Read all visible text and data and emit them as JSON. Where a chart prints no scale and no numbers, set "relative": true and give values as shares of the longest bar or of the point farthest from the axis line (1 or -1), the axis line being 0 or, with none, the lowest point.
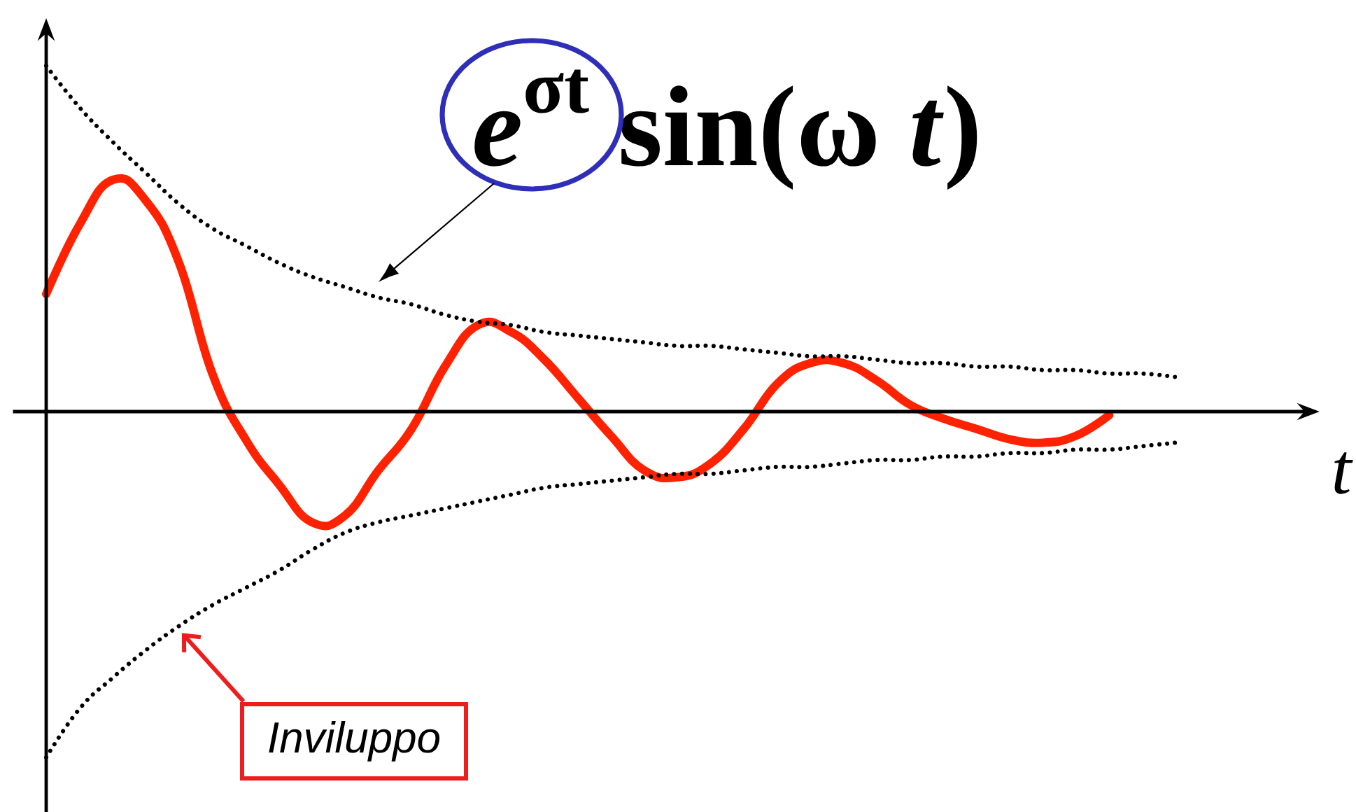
{
  "chart_data": {
    "type": "line",
    "relative": true,
    "marker": "none",
    "xlabel": "t",
    "categories": [
      null,
      null,
      null,
      null,
      null,
      null,
      null,
      null,
      null,
      null,
      null,
      null,
      null,
      null,
      null,
      null,
      null,
      null,
      null,
      null,
      null,
      null,
      null,
      null,
      null,
      null,
      null,
      null,
      null,
      null,
      null,
      null,
      null,
      null,
      null
    ],
    "series": [
      {
        "color": "#ff2200",
        "line_style": "solid",
        "values": [
          0.34,
          0.54,
          0.67,
          0.61,
          0.43,
          0.11,
          -0.08,
          -0.21,
          -0.32,
          -0.3,
          -0.17,
          -0.05,
          0.13,
          0.25,
          0.23,
          0.15,
          0.04,
          -0.07,
          -0.17,
          -0.19,
          -0.15,
          -0.05,
          0.08,
          0.14,
          0.14,
          0.09,
          0.02,
          -0.02,
          -0.05,
          -0.08,
          -0.09,
          -0.07,
          -0.01,
          null,
          null
        ]
      },
      {
        "color": "#000000",
        "line_style": "dotted",
        "values": [
          1.0,
          0.88,
          0.78,
          0.69,
          0.6,
          0.53,
          0.48,
          0.43,
          0.39,
          0.36,
          0.33,
          0.31,
          0.28,
          0.26,
          0.25,
          0.23,
          0.22,
          0.21,
          0.2,
          0.19,
          0.19,
          0.18,
          0.17,
          0.16,
          0.16,
          0.15,
          0.14,
          0.14,
          0.13,
          0.13,
          0.12,
          0.12,
          0.11,
          0.11,
          0.1
        ]
      },
      {
        "color": "#000000",
        "line_style": "dotted",
        "values": [
          -1.0,
          -0.86,
          -0.77,
          -0.69,
          -0.62,
          -0.56,
          -0.51,
          -0.46,
          -0.4,
          -0.35,
          -0.32,
          -0.3,
          -0.28,
          -0.26,
          -0.24,
          -0.22,
          -0.21,
          -0.2,
          -0.19,
          -0.18,
          -0.18,
          -0.17,
          -0.16,
          -0.16,
          -0.15,
          -0.14,
          -0.14,
          -0.13,
          -0.13,
          -0.12,
          -0.12,
          -0.11,
          -0.11,
          -0.1,
          -0.09
        ]
      }
    ],
    "annotations": [
      "*e*$^{σt}$ sin(ω *t*)",
      "Inviluppo"
    ]
  }
}
